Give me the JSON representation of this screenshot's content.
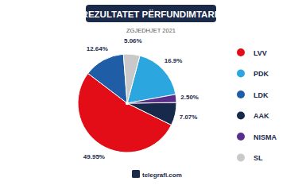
{
  "chart_data": {
    "type": "pie",
    "title": "REZULTATET PËRFUNDIMTARE",
    "subtitle": "ZGJEDHJET 2021",
    "categories": [
      "LVV",
      "PDK",
      "LDK",
      "AAK",
      "NISMA",
      "SL"
    ],
    "values": [
      49.95,
      16.9,
      12.64,
      7.07,
      2.5,
      5.06
    ],
    "value_labels": [
      "49.95%",
      "16.9%",
      "12.64%",
      "7.07%",
      "2.50%",
      "5.06%"
    ],
    "colors": [
      "#e30d17",
      "#2ba6de",
      "#1f5ea6",
      "#172a4c",
      "#5a2f8c",
      "#c9c9c9"
    ],
    "data_labels": true,
    "legend": "right",
    "annotations": [
      "telegrafi.com"
    ]
  }
}
